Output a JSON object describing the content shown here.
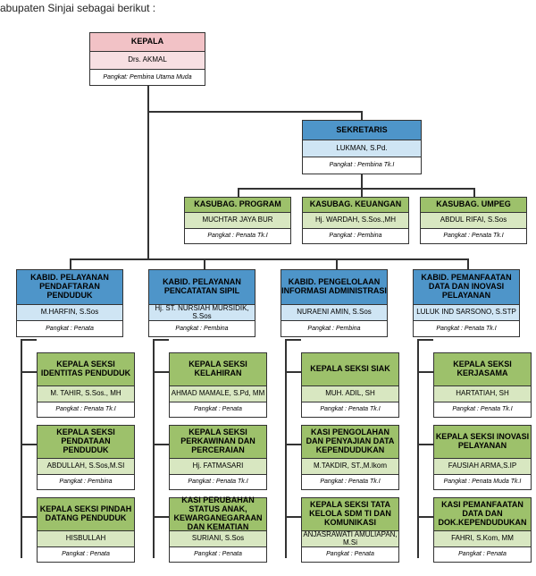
{
  "palette": {
    "pink": "#f2c2c6",
    "pink_name": "#f7dfe2",
    "blue": "#4e95c9",
    "blue_name": "#cfe5f4",
    "green": "#9dc16b",
    "green_name": "#d8e7c1",
    "white": "#ffffff",
    "border": "#333333"
  },
  "sizes": {
    "hdr_fs": 9,
    "name_fs": 8,
    "rank_fs": 7
  },
  "caption": "abupaten Sinjai sebagai berikut :",
  "kepala": {
    "title": "KEPALA",
    "name": "Drs. AKMAL",
    "rank": "Pangkat: Pembina Utama Muda"
  },
  "sekretaris": {
    "title": "SEKRETARIS",
    "name": "LUKMAN, S.Pd.",
    "rank": "Pangkat : Pembina Tk.I"
  },
  "kasubag": [
    {
      "title": "KASUBAG. PROGRAM",
      "name": "MUCHTAR JAYA BUR",
      "rank": "Pangkat : Penata Tk.I"
    },
    {
      "title": "KASUBAG. KEUANGAN",
      "name": "Hj. WARDAH, S.Sos.,MH",
      "rank": "Pangkat : Pembina"
    },
    {
      "title": "KASUBAG. UMPEG",
      "name": "ABDUL RIFAI, S.Sos",
      "rank": "Pangkat : Penata Tk.I"
    }
  ],
  "kabid": [
    {
      "title": "KABID. PELAYANAN PENDAFTARAN PENDUDUK",
      "name": "M.HARFIN, S.Sos",
      "rank": "Pangkat : Penata"
    },
    {
      "title": "KABID. PELAYANAN PENCATATAN SIPIL",
      "name": "Hj. ST. NURSIAH MURSIDIK, S.Sos",
      "rank": "Pangkat : Pembina"
    },
    {
      "title": "KABID. PENGELOLAAN INFORMASI ADMINISTRASI",
      "name": "NURAENI AMIN, S.Sos",
      "rank": "Pangkat : Pembina"
    },
    {
      "title": "KABID. PEMANFAATAN DATA DAN INOVASI PELAYANAN",
      "name": "LULUK IND SARSONO, S.STP",
      "rank": "Pangkat : Penata Tk.I"
    }
  ],
  "seksi": [
    [
      {
        "title": "KEPALA SEKSI IDENTITAS PENDUDUK",
        "name": "M. TAHIR, S.Sos., MH",
        "rank": "Pangkat : Penata Tk.I"
      },
      {
        "title": "KEPALA SEKSI PENDATAAN PENDUDUK",
        "name": "ABDULLAH, S.Sos,M.SI",
        "rank": "Pangkat : Pembina"
      },
      {
        "title": "KEPALA SEKSI PINDAH DATANG PENDUDUK",
        "name": "HISBULLAH",
        "rank": "Pangkat : Penata"
      }
    ],
    [
      {
        "title": "KEPALA SEKSI KELAHIRAN",
        "name": "AHMAD MAMALE, S.Pd, MM",
        "rank": "Pangkat : Penata"
      },
      {
        "title": "KEPALA SEKSI PERKAWINAN DAN PERCERAIAN",
        "name": "Hj. FATMASARI",
        "rank": "Pangkat : Penata Tk.I"
      },
      {
        "title": "KASI PERUBAHAN STATUS ANAK, KEWARGANEGARAAN DAN KEMATIAN",
        "name": "SURIANI, S.Sos",
        "rank": "Pangkat : Penata"
      }
    ],
    [
      {
        "title": "KEPALA SEKSI SIAK",
        "name": "MUH. ADIL, SH",
        "rank": "Pangkat : Penata Tk.I"
      },
      {
        "title": "KASI PENGOLAHAN DAN PENYAJIAN DATA KEPENDUDUKAN",
        "name": "M.TAKDIR, ST.,M.Ikom",
        "rank": "Pangkat : Penata Tk.I"
      },
      {
        "title": "KEPALA SEKSI TATA KELOLA SDM TI DAN KOMUNIKASI",
        "name": "ANJASRAWATI AMULIAPAN, M.Si",
        "rank": "Pangkat : Penata"
      }
    ],
    [
      {
        "title": "KEPALA SEKSI KERJASAMA",
        "name": "HARTATIAH, SH",
        "rank": "Pangkat : Penata Tk.I"
      },
      {
        "title": "KEPALA SEKSI INOVASI PELAYANAN",
        "name": "FAUSIAH ARMA,S.IP",
        "rank": "Pangkat : Penata Muda Tk.I"
      },
      {
        "title": "KASI PEMANFAATAN DATA DAN DOK.KEPENDUDUKAN",
        "name": "FAHRI, S.Kom, MM",
        "rank": "Pangkat : Penata"
      }
    ]
  ]
}
